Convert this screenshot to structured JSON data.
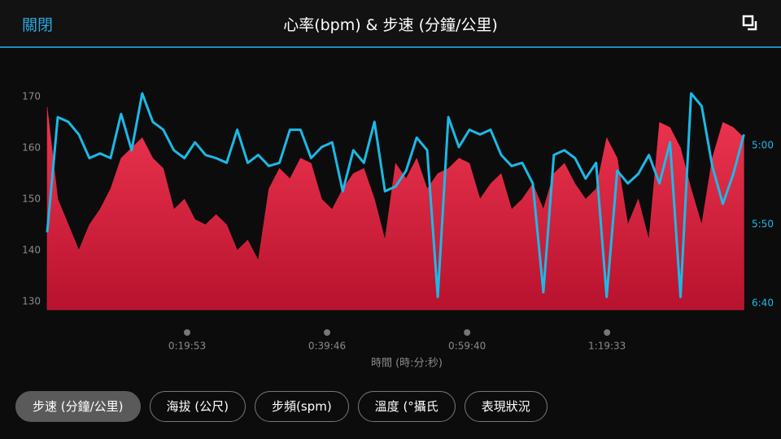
{
  "header": {
    "close": "關閉",
    "title": "心率(bpm) & 步速 (分鐘/公里)"
  },
  "chart_data": {
    "type": "area-line",
    "x_label": "時間 (時:分:秒)",
    "xlim": [
      0,
      5958
    ],
    "xticks": [
      {
        "value": 1193,
        "label": "0:19:53"
      },
      {
        "value": 2386,
        "label": "0:39:46"
      },
      {
        "value": 3580,
        "label": "0:59:40"
      },
      {
        "value": 4773,
        "label": "1:19:33"
      }
    ],
    "ylim": [
      128.4,
      173
    ],
    "yticks": [
      130,
      140,
      150,
      160,
      170
    ],
    "y2lim": [
      404.1,
      259.3
    ],
    "y2_inverted": true,
    "y2ticks": [
      {
        "value": 300,
        "label": "5:00"
      },
      {
        "value": 350,
        "label": "5:50"
      },
      {
        "value": 400,
        "label": "6:40"
      }
    ],
    "grid": false,
    "x": [
      0,
      90,
      180,
      270,
      360,
      450,
      540,
      630,
      720,
      810,
      900,
      990,
      1080,
      1170,
      1260,
      1350,
      1440,
      1530,
      1620,
      1710,
      1800,
      1890,
      1980,
      2070,
      2160,
      2250,
      2340,
      2430,
      2520,
      2610,
      2700,
      2790,
      2880,
      2970,
      3060,
      3150,
      3240,
      3330,
      3420,
      3510,
      3600,
      3690,
      3780,
      3870,
      3960,
      4050,
      4140,
      4230,
      4320,
      4410,
      4500,
      4590,
      4680,
      4770,
      4860,
      4950,
      5040,
      5130,
      5220,
      5310,
      5400,
      5490,
      5580,
      5670,
      5760,
      5850,
      5940
    ],
    "series": [
      {
        "kind": "area",
        "color": "#e22a45",
        "values": [
          168,
          150,
          145,
          140,
          145,
          148,
          152,
          158,
          160,
          162,
          158,
          156,
          148,
          150,
          146,
          145,
          147,
          145,
          140,
          142,
          138,
          152,
          156,
          154,
          158,
          157,
          150,
          148,
          152,
          155,
          156,
          150,
          142,
          157,
          154,
          158,
          152,
          155,
          156,
          158,
          157,
          150,
          153,
          155,
          148,
          150,
          153,
          148,
          155,
          157,
          153,
          150,
          152,
          162,
          158,
          145,
          150,
          142,
          165,
          164,
          160,
          152,
          145,
          158,
          165,
          164,
          162
        ]
      },
      {
        "kind": "line",
        "axis": "y2",
        "color": "#1cb9e6",
        "values": [
          355,
          282,
          285,
          293,
          308,
          305,
          308,
          280,
          303,
          267,
          285,
          290,
          303,
          308,
          298,
          306,
          308,
          311,
          290,
          311,
          306,
          313,
          311,
          290,
          290,
          308,
          301,
          298,
          329,
          303,
          311,
          285,
          329,
          326,
          316,
          295,
          303,
          396,
          282,
          301,
          290,
          293,
          290,
          306,
          313,
          311,
          324,
          393,
          306,
          303,
          308,
          321,
          311,
          396,
          316,
          324,
          318,
          306,
          324,
          298,
          396,
          267,
          275,
          313,
          337,
          318,
          293
        ]
      }
    ]
  },
  "buttons": [
    {
      "label": "步速 (分鐘/公里)",
      "selected": true
    },
    {
      "label": "海拔 (公尺)",
      "selected": false
    },
    {
      "label": "步頻(spm)",
      "selected": false
    },
    {
      "label": "溫度 (°攝氏",
      "selected": false
    },
    {
      "label": "表現狀況",
      "selected": false
    }
  ]
}
